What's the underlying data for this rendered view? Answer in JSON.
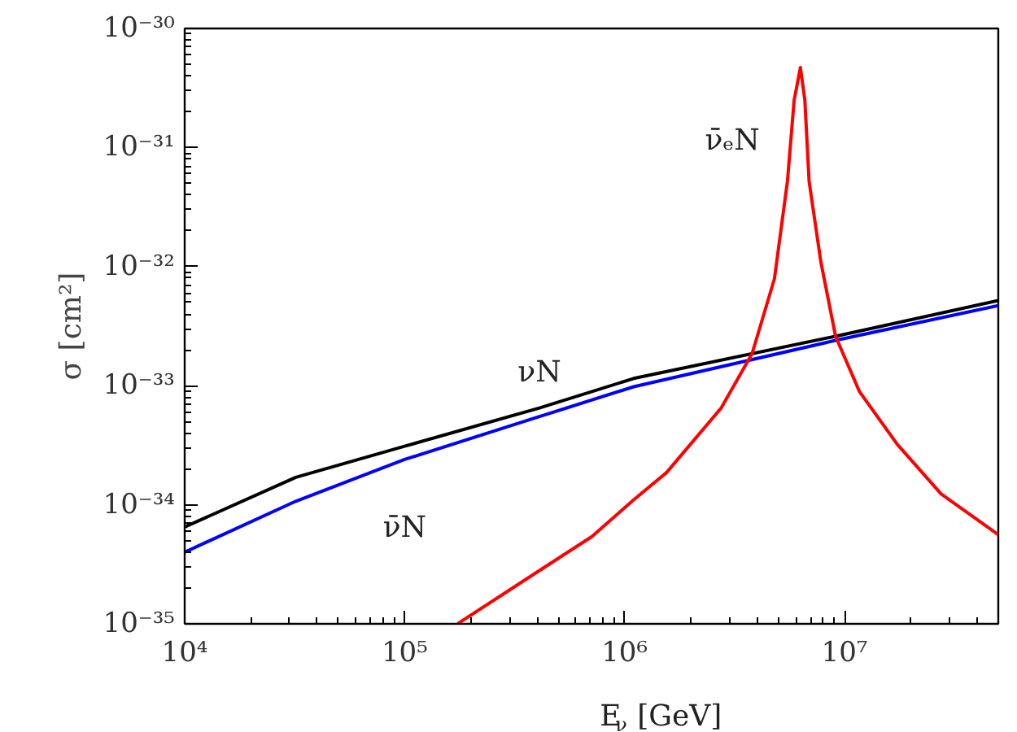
{
  "chart_data": {
    "type": "line",
    "xlabel": "E$_{ν}$ [GeV]",
    "ylabel": "σ [cm²]",
    "log": "xy",
    "xlim": [
      10000,
      50000000
    ],
    "ylim": [
      1e-35,
      1e-30
    ],
    "xticks": [
      {
        "value": 10000,
        "label": "10⁴"
      },
      {
        "value": 100000,
        "label": "10⁵"
      },
      {
        "value": 1000000,
        "label": "10⁶"
      },
      {
        "value": 10000000,
        "label": "10⁷"
      }
    ],
    "yticks": [
      {
        "value": 1e-35,
        "label": "10⁻³⁵"
      },
      {
        "value": 1e-34,
        "label": "10⁻³⁴"
      },
      {
        "value": 1e-33,
        "label": "10⁻³³"
      },
      {
        "value": 1e-32,
        "label": "10⁻³²"
      },
      {
        "value": 1e-31,
        "label": "10⁻³¹"
      },
      {
        "value": 1e-30,
        "label": "10⁻³⁰"
      }
    ],
    "grid": false,
    "line_style": "solid",
    "series": [
      {
        "name": "νN",
        "color": "#000000",
        "x": [
          10000,
          32000,
          100000,
          410000,
          1100000,
          9100000,
          50000000
        ],
        "values": [
          6.5e-35,
          1.7e-34,
          3.1e-34,
          6.5e-34,
          1.15e-33,
          2.6e-33,
          5.2e-33
        ]
      },
      {
        "name": "ν̄N",
        "color": "#0000ff",
        "x": [
          10000,
          32000,
          100000,
          410000,
          1100000,
          9100000,
          50000000
        ],
        "values": [
          4e-35,
          1.07e-34,
          2.4e-34,
          5.5e-34,
          9.8e-34,
          2.4e-33,
          4.7e-33
        ]
      },
      {
        "name": "ν̄ₑN",
        "color": "#ff0000",
        "x": [
          174000,
          410000,
          710000,
          1100000,
          1550000,
          2750000,
          3800000,
          4800000,
          5500000,
          5900000,
          6300000,
          6600000,
          6900000,
          7800000,
          9100000,
          11700000,
          17400000,
          27500000,
          50000000
        ],
        "values": [
          1e-35,
          2.8e-35,
          5.4e-35,
          1.1e-34,
          1.86e-34,
          6.5e-34,
          1.86e-33,
          7.9e-33,
          5.2e-32,
          2.5e-31,
          4.7e-31,
          2.5e-31,
          5.2e-32,
          1.1e-32,
          2.6e-33,
          8.9e-34,
          3.2e-34,
          1.23e-34,
          5.6e-35
        ]
      }
    ]
  }
}
